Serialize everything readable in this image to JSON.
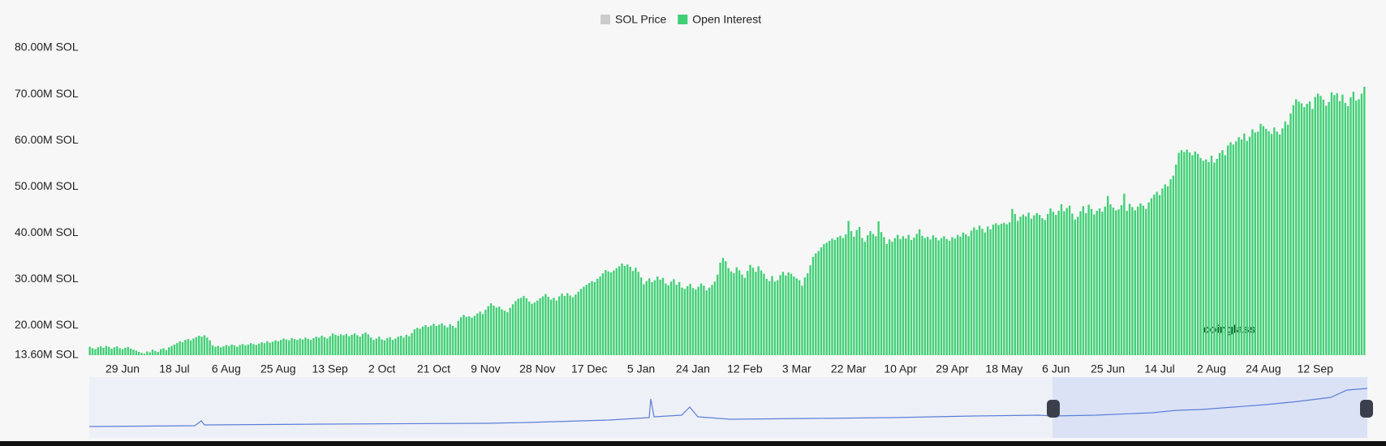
{
  "chart_data": {
    "type": "bar",
    "legend": [
      {
        "name": "SOL Price",
        "color": "#cccccc",
        "active": false
      },
      {
        "name": "Open Interest",
        "color": "#3fcf74",
        "active": true
      }
    ],
    "watermark": "coinglass",
    "ylim": [
      13.6,
      80
    ],
    "yticks": [
      {
        "value": 13.6,
        "label": "13.60M SOL"
      },
      {
        "value": 20,
        "label": "20.00M SOL"
      },
      {
        "value": 30,
        "label": "30.00M SOL"
      },
      {
        "value": 40,
        "label": "40.00M SOL"
      },
      {
        "value": 50,
        "label": "50.00M SOL"
      },
      {
        "value": 60,
        "label": "60.00M SOL"
      },
      {
        "value": 70,
        "label": "70.00M SOL"
      },
      {
        "value": 80,
        "label": "80.00M SOL"
      }
    ],
    "categories": [
      null,
      null,
      null,
      null,
      null,
      null,
      null,
      null,
      null,
      null,
      null,
      null,
      "29 Jun",
      null,
      null,
      null,
      null,
      null,
      null,
      null,
      null,
      null,
      null,
      null,
      null,
      null,
      null,
      null,
      null,
      null,
      null,
      "18 Jul",
      null,
      null,
      null,
      null,
      null,
      null,
      null,
      null,
      null,
      null,
      null,
      null,
      null,
      null,
      null,
      null,
      null,
      null,
      "6 Aug",
      null,
      null,
      null,
      null,
      null,
      null,
      null,
      null,
      null,
      null,
      null,
      null,
      null,
      null,
      null,
      null,
      null,
      null,
      "25 Aug",
      null,
      null,
      null,
      null,
      null,
      null,
      null,
      null,
      null,
      null,
      null,
      null,
      null,
      null,
      null,
      null,
      null,
      null,
      "13 Sep",
      null,
      null,
      null,
      null,
      null,
      null,
      null,
      null,
      null,
      null,
      null,
      null,
      null,
      null,
      null,
      null,
      null,
      null,
      "2 Oct",
      null,
      null,
      null,
      null,
      null,
      null,
      null,
      null,
      null,
      null,
      null,
      null,
      null,
      null,
      null,
      null,
      null,
      null,
      "21 Oct",
      null,
      null,
      null,
      null,
      null,
      null,
      null,
      null,
      null,
      null,
      null,
      null,
      null,
      null,
      null,
      null,
      null,
      null,
      "9 Nov",
      null,
      null,
      null,
      null,
      null,
      null,
      null,
      null,
      null,
      null,
      null,
      null,
      null,
      null,
      null,
      null,
      null,
      null,
      "28 Nov",
      null,
      null,
      null,
      null,
      null,
      null,
      null,
      null,
      null,
      null,
      null,
      null,
      null,
      null,
      null,
      null,
      null,
      null,
      "17 Dec",
      null,
      null,
      null,
      null,
      null,
      null,
      null,
      null,
      null,
      null,
      null,
      null,
      null,
      null,
      null,
      null,
      null,
      null,
      "5 Jan",
      null,
      null,
      null,
      null,
      null,
      null,
      null,
      null,
      null,
      null,
      null,
      null,
      null,
      null,
      null,
      null,
      null,
      null,
      "24 Jan",
      null,
      null,
      null,
      null,
      null,
      null,
      null,
      null,
      null,
      null,
      null,
      null,
      null,
      null,
      null,
      null,
      null,
      null,
      "12 Feb",
      null,
      null,
      null,
      null,
      null,
      null,
      null,
      null,
      null,
      null,
      null,
      null,
      null,
      null,
      null,
      null,
      null,
      null,
      "3 Mar",
      null,
      null,
      null,
      null,
      null,
      null,
      null,
      null,
      null,
      null,
      null,
      null,
      null,
      null,
      null,
      null,
      null,
      null,
      "22 Mar",
      null,
      null,
      null,
      null,
      null,
      null,
      null,
      null,
      null,
      null,
      null,
      null,
      null,
      null,
      null,
      null,
      null,
      null,
      "10 Apr",
      null,
      null,
      null,
      null,
      null,
      null,
      null,
      null,
      null,
      null,
      null,
      null,
      null,
      null,
      null,
      null,
      null,
      null,
      "29 Apr",
      null,
      null,
      null,
      null,
      null,
      null,
      null,
      null,
      null,
      null,
      null,
      null,
      null,
      null,
      null,
      null,
      null,
      null,
      "18 May",
      null,
      null,
      null,
      null,
      null,
      null,
      null,
      null,
      null,
      null,
      null,
      null,
      null,
      null,
      null,
      null,
      null,
      null,
      "6 Jun",
      null,
      null,
      null,
      null,
      null,
      null,
      null,
      null,
      null,
      null,
      null,
      null,
      null,
      null,
      null,
      null,
      null,
      null,
      "25 Jun",
      null,
      null,
      null,
      null,
      null,
      null,
      null,
      null,
      null,
      null,
      null,
      null,
      null,
      null,
      null,
      null,
      null,
      null,
      "14 Jul",
      null,
      null,
      null,
      null,
      null,
      null,
      null,
      null,
      null,
      null,
      null,
      null,
      null,
      null,
      null,
      null,
      null,
      null,
      "2 Aug",
      null,
      null,
      null,
      null,
      null,
      null,
      null,
      null,
      null,
      null,
      null,
      null,
      null,
      null,
      null,
      null,
      null,
      null,
      "24 Aug",
      null,
      null,
      null,
      null,
      null,
      null,
      null,
      null,
      null,
      null,
      null,
      null,
      null,
      null,
      null,
      null,
      null,
      null,
      "12 Sep",
      null,
      null,
      null,
      null,
      null,
      null,
      null,
      null,
      null,
      null,
      null,
      null,
      null,
      null,
      null,
      null,
      null,
      null
    ],
    "series": [
      {
        "name": "Open Interest",
        "color": "#3fcf74",
        "values": [
          15.4,
          15.1,
          14.9,
          15.3,
          15.5,
          15.2,
          15.6,
          15.4,
          15.0,
          15.3,
          15.5,
          15.1,
          14.9,
          15.2,
          15.4,
          15.0,
          14.8,
          14.6,
          14.3,
          14.1,
          13.9,
          14.4,
          14.2,
          14.8,
          14.5,
          14.3,
          14.9,
          15.1,
          14.7,
          15.3,
          15.6,
          15.9,
          16.2,
          16.6,
          16.4,
          16.9,
          17.1,
          16.8,
          17.2,
          17.5,
          17.8,
          17.6,
          17.9,
          17.4,
          16.8,
          15.7,
          15.4,
          15.6,
          15.3,
          15.5,
          15.8,
          15.6,
          15.9,
          15.7,
          15.4,
          15.8,
          16.0,
          15.7,
          15.9,
          16.2,
          16.0,
          15.8,
          16.1,
          16.4,
          16.2,
          16.6,
          16.3,
          16.5,
          16.8,
          16.6,
          16.9,
          17.2,
          17.0,
          16.8,
          17.3,
          17.1,
          16.9,
          17.2,
          17.0,
          17.4,
          17.1,
          16.9,
          17.3,
          17.6,
          17.4,
          17.8,
          17.5,
          17.2,
          17.7,
          18.3,
          18.0,
          17.8,
          18.1,
          17.9,
          18.2,
          17.7,
          18.0,
          18.3,
          17.9,
          17.6,
          18.2,
          18.5,
          18.1,
          17.4,
          16.9,
          17.2,
          17.6,
          17.0,
          16.8,
          17.3,
          17.5,
          16.9,
          17.2,
          17.6,
          17.8,
          17.4,
          18.0,
          17.7,
          18.4,
          19.2,
          19.5,
          19.3,
          19.8,
          20.1,
          19.7,
          20.0,
          20.4,
          19.9,
          20.2,
          20.5,
          20.0,
          19.6,
          20.3,
          19.9,
          19.5,
          21.0,
          21.8,
          22.3,
          21.9,
          22.0,
          21.7,
          22.1,
          22.6,
          23.0,
          22.5,
          23.4,
          24.2,
          24.8,
          24.3,
          23.9,
          24.1,
          23.5,
          23.2,
          22.9,
          23.8,
          24.6,
          25.3,
          25.8,
          26.0,
          26.4,
          25.9,
          25.2,
          24.7,
          25.0,
          25.4,
          25.9,
          26.3,
          26.8,
          26.2,
          25.6,
          26.0,
          25.4,
          26.3,
          26.9,
          26.4,
          27.0,
          26.5,
          26.1,
          26.7,
          27.3,
          27.9,
          28.4,
          28.8,
          29.2,
          29.6,
          29.4,
          30.1,
          30.6,
          31.3,
          32.0,
          31.7,
          31.5,
          31.9,
          32.4,
          32.8,
          33.4,
          32.9,
          33.2,
          32.7,
          31.8,
          32.5,
          31.6,
          30.4,
          28.9,
          29.6,
          30.2,
          29.4,
          29.8,
          30.6,
          29.9,
          30.3,
          29.1,
          28.7,
          29.5,
          30.0,
          28.8,
          29.4,
          28.2,
          27.9,
          28.5,
          29.0,
          28.1,
          27.8,
          28.4,
          29.1,
          28.6,
          27.6,
          28.2,
          28.8,
          29.5,
          31.0,
          33.6,
          34.6,
          33.9,
          32.4,
          31.7,
          31.3,
          32.6,
          31.9,
          31.0,
          30.3,
          31.8,
          33.1,
          32.5,
          31.6,
          32.8,
          31.9,
          31.2,
          30.1,
          29.6,
          30.7,
          29.5,
          29.8,
          30.9,
          31.6,
          30.8,
          31.5,
          31.2,
          30.6,
          30.2,
          29.8,
          28.6,
          30.4,
          31.3,
          33.0,
          34.8,
          35.6,
          36.1,
          36.9,
          37.6,
          37.9,
          38.3,
          38.8,
          38.5,
          39.1,
          39.4,
          38.9,
          39.7,
          42.6,
          40.4,
          39.2,
          40.6,
          41.3,
          38.9,
          38.1,
          39.5,
          40.4,
          39.8,
          39.3,
          42.5,
          40.2,
          39.1,
          37.6,
          38.6,
          38.1,
          38.9,
          39.6,
          38.7,
          39.3,
          38.8,
          39.6,
          38.5,
          39.0,
          39.8,
          40.8,
          39.4,
          38.9,
          39.2,
          38.6,
          39.5,
          39.0,
          38.4,
          38.9,
          39.3,
          38.7,
          38.3,
          39.1,
          38.8,
          39.6,
          39.2,
          40.1,
          39.7,
          39.3,
          40.5,
          41.2,
          40.7,
          41.6,
          40.9,
          40.1,
          41.4,
          40.8,
          41.8,
          42.1,
          41.7,
          42.0,
          42.2,
          41.9,
          42.3,
          45.2,
          44.1,
          42.6,
          43.5,
          44.0,
          43.6,
          44.4,
          43.1,
          43.8,
          44.3,
          43.9,
          43.2,
          42.8,
          44.1,
          45.3,
          44.6,
          43.9,
          44.8,
          46.2,
          44.7,
          45.4,
          45.9,
          44.2,
          42.9,
          43.5,
          44.7,
          45.8,
          44.3,
          46.1,
          45.2,
          44.0,
          44.8,
          45.3,
          44.6,
          45.7,
          48.0,
          46.2,
          45.5,
          44.9,
          45.1,
          46.0,
          48.5,
          44.8,
          46.3,
          45.6,
          44.9,
          45.7,
          46.4,
          45.9,
          45.2,
          46.6,
          47.5,
          48.3,
          48.9,
          48.2,
          49.6,
          50.5,
          50.1,
          51.6,
          52.4,
          54.8,
          57.3,
          57.9,
          57.5,
          58.0,
          57.4,
          56.8,
          57.6,
          57.1,
          56.2,
          55.6,
          55.9,
          55.3,
          56.7,
          55.2,
          56.0,
          57.3,
          57.9,
          56.8,
          58.9,
          59.6,
          59.1,
          59.8,
          60.7,
          60.2,
          61.5,
          59.9,
          60.8,
          62.4,
          61.7,
          61.9,
          63.6,
          63.1,
          62.5,
          62.0,
          61.4,
          62.8,
          61.9,
          61.3,
          62.6,
          64.1,
          63.4,
          65.8,
          67.6,
          68.9,
          68.4,
          68.0,
          67.2,
          67.9,
          68.4,
          66.8,
          69.4,
          70.1,
          69.6,
          68.8,
          67.5,
          68.3,
          70.4,
          69.8,
          70.2,
          68.5,
          69.9,
          68.1,
          67.4,
          69.3,
          70.5,
          68.6,
          68.9,
          70.1,
          71.6
        ]
      }
    ]
  }
}
